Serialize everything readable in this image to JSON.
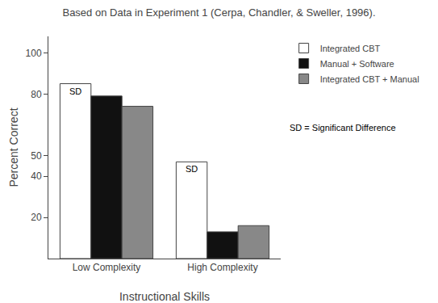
{
  "chart_data": {
    "type": "bar",
    "title": "Based on Data in Experiment 1 (Cerpa, Chandler, & Sweller, 1996).",
    "xlabel": "Instructional Skills",
    "ylabel": "Percent Correct",
    "categories": [
      "Low Complexity",
      "High Complexity"
    ],
    "series": [
      {
        "name": "Integrated CBT",
        "color": "#ffffff",
        "values": [
          85,
          47
        ]
      },
      {
        "name": "Manual + Software",
        "color": "#111111",
        "values": [
          79,
          13
        ]
      },
      {
        "name": "Integrated CBT + Manual",
        "color": "#888888",
        "values": [
          74,
          16
        ]
      }
    ],
    "ylim": [
      0,
      108
    ],
    "yticks": [
      20,
      40,
      50,
      80,
      100
    ],
    "grid": false,
    "legend": "right",
    "annotations": [
      {
        "text": "SD",
        "category": "Low Complexity",
        "series": "Integrated CBT"
      },
      {
        "text": "SD",
        "category": "High Complexity",
        "series": "Integrated CBT"
      },
      {
        "text": "SD = Significant Difference"
      }
    ]
  }
}
